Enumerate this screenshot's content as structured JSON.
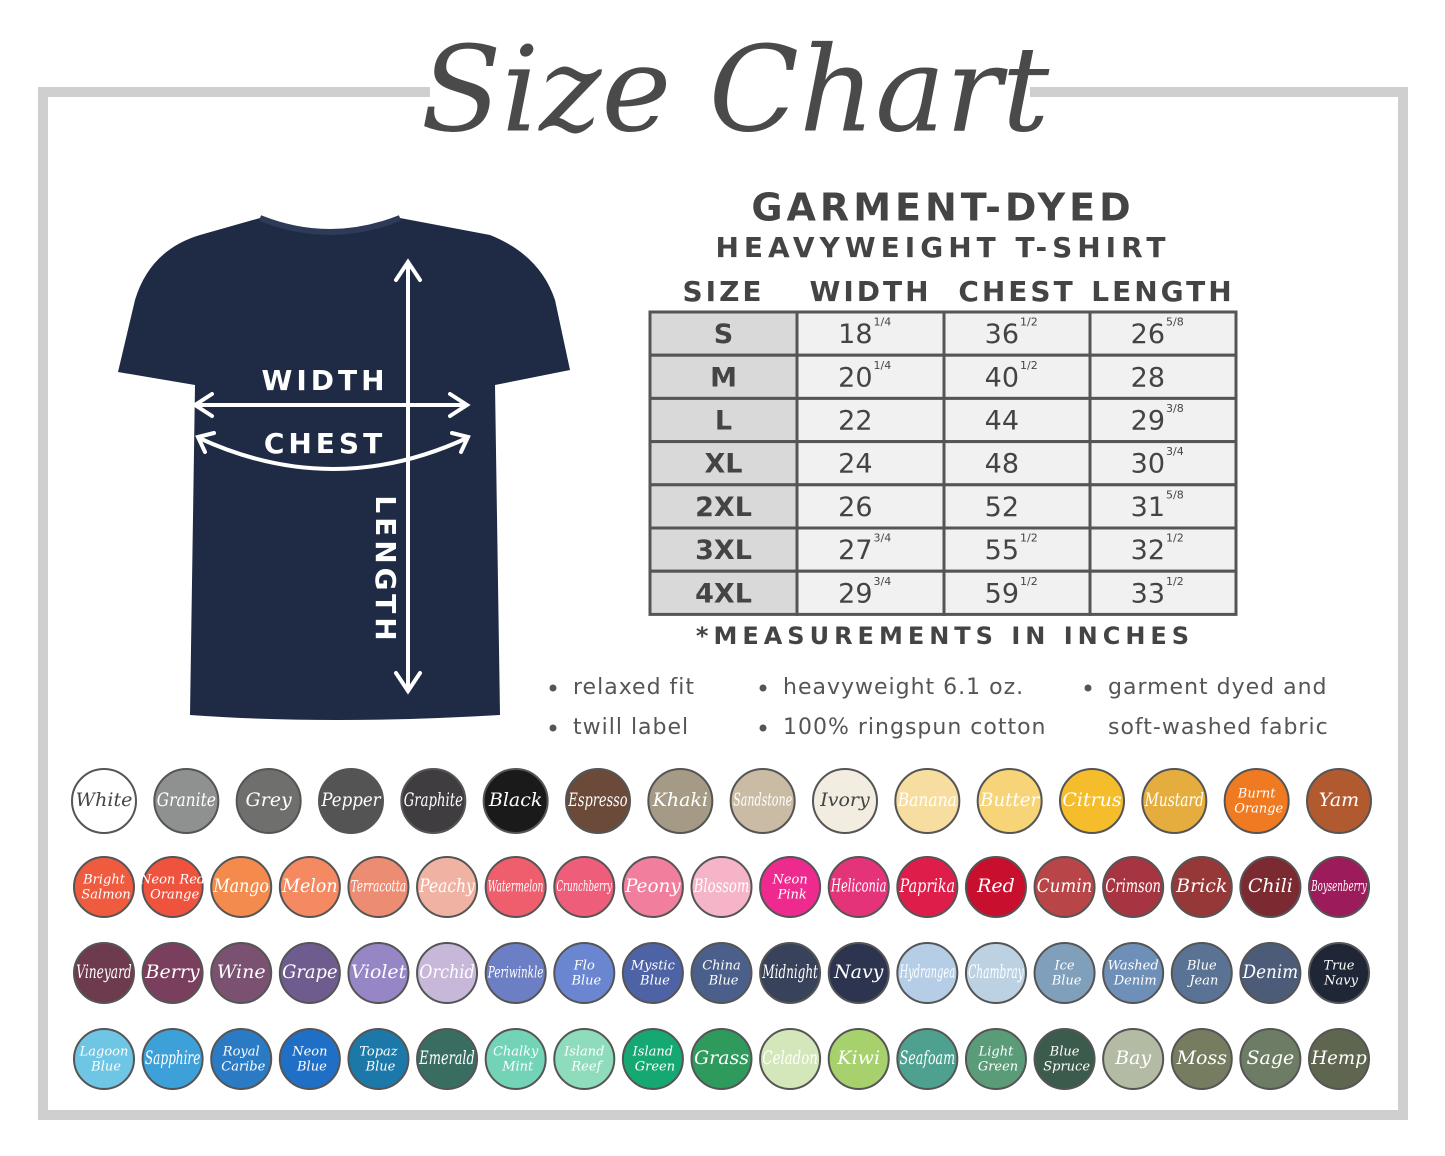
{
  "title": "Size Chart",
  "product": {
    "line1": "GARMENT-DYED",
    "line2": "HEAVYWEIGHT T-SHIRT"
  },
  "diagram": {
    "width": "WIDTH",
    "chest": "CHEST",
    "length": "LENGTH"
  },
  "table": {
    "header": [
      "SIZE",
      "WIDTH",
      "CHEST",
      "LENGTH"
    ],
    "rows": [
      [
        "S",
        [
          "18",
          "1/4"
        ],
        [
          "36",
          "1/2"
        ],
        [
          "26",
          "5/8"
        ]
      ],
      [
        "M",
        [
          "20",
          "1/4"
        ],
        [
          "40",
          "1/2"
        ],
        [
          "28"
        ]
      ],
      [
        "L",
        [
          "22"
        ],
        [
          "44"
        ],
        [
          "29",
          "3/8"
        ]
      ],
      [
        "XL",
        [
          "24"
        ],
        [
          "48"
        ],
        [
          "30",
          "3/4"
        ]
      ],
      [
        "2XL",
        [
          "26"
        ],
        [
          "52"
        ],
        [
          "31",
          "5/8"
        ]
      ],
      [
        "3XL",
        [
          "27",
          "3/4"
        ],
        [
          "55",
          "1/2"
        ],
        [
          "32",
          "1/2"
        ]
      ],
      [
        "4XL",
        [
          "29",
          "3/4"
        ],
        [
          "59",
          "1/2"
        ],
        [
          "33",
          "1/2"
        ]
      ]
    ]
  },
  "note": "*MEASUREMENTS IN INCHES",
  "features": [
    [
      {
        "lines": [
          "relaxed fit"
        ]
      },
      {
        "lines": [
          "twill label"
        ]
      }
    ],
    [
      {
        "lines": [
          "heavyweight 6.1 oz."
        ]
      },
      {
        "lines": [
          "100% ringspun cotton"
        ]
      }
    ],
    [
      {
        "lines": [
          "garment dyed and",
          "soft-washed fabric"
        ]
      }
    ]
  ],
  "swatches": [
    [
      {
        "name": "White",
        "color": "#ffffff"
      },
      {
        "name": "Granite",
        "color": "#8f9191"
      },
      {
        "name": "Grey",
        "color": "#6f6f6e"
      },
      {
        "name": "Pepper",
        "color": "#545454"
      },
      {
        "name": "Graphite",
        "color": "#3f3d3f"
      },
      {
        "name": "Black",
        "color": "#1a1a1a"
      },
      {
        "name": "Espresso",
        "color": "#6b4a3a"
      },
      {
        "name": "Khaki",
        "color": "#a59a86"
      },
      {
        "name": "Sandstone",
        "color": "#c9bba4"
      },
      {
        "name": "Ivory",
        "color": "#f2ede0"
      },
      {
        "name": "Banana",
        "color": "#f7dea0"
      },
      {
        "name": "Butter",
        "color": "#f6d477"
      },
      {
        "name": "Citrus",
        "color": "#f5bd2c"
      },
      {
        "name": "Mustard",
        "color": "#e5ad3d"
      },
      {
        "name": "Burnt Orange",
        "color": "#ef7a22"
      },
      {
        "name": "Yam",
        "color": "#b25a2f"
      }
    ],
    [
      {
        "name": "Bright Salmon",
        "color": "#ee5b3f"
      },
      {
        "name": "Neon Red Orange",
        "color": "#f0533d"
      },
      {
        "name": "Mango",
        "color": "#f48b4c"
      },
      {
        "name": "Melon",
        "color": "#f58a62"
      },
      {
        "name": "Terracotta",
        "color": "#ec8c72"
      },
      {
        "name": "Peachy",
        "color": "#f0b3a3"
      },
      {
        "name": "Watermelon",
        "color": "#ef5e6c"
      },
      {
        "name": "Crunchberry",
        "color": "#ee5e7a"
      },
      {
        "name": "Peony",
        "color": "#f07e9c"
      },
      {
        "name": "Blossom",
        "color": "#f6b4c8"
      },
      {
        "name": "Neon Pink",
        "color": "#ee2a8e"
      },
      {
        "name": "Heliconia",
        "color": "#e5337a"
      },
      {
        "name": "Paprika",
        "color": "#de1d4a"
      },
      {
        "name": "Red",
        "color": "#c8102e"
      },
      {
        "name": "Cumin",
        "color": "#b84547"
      },
      {
        "name": "Crimson",
        "color": "#a63541"
      },
      {
        "name": "Brick",
        "color": "#963838"
      },
      {
        "name": "Chili",
        "color": "#7c2a31"
      },
      {
        "name": "Boysenberry",
        "color": "#9c1b5a"
      }
    ],
    [
      {
        "name": "Vineyard",
        "color": "#6e3a4e"
      },
      {
        "name": "Berry",
        "color": "#7b3f5e"
      },
      {
        "name": "Wine",
        "color": "#7a5170"
      },
      {
        "name": "Grape",
        "color": "#6f5c8e"
      },
      {
        "name": "Violet",
        "color": "#9686c6"
      },
      {
        "name": "Orchid",
        "color": "#c7b8da"
      },
      {
        "name": "Periwinkle",
        "color": "#6d7fc4"
      },
      {
        "name": "Flo Blue",
        "color": "#6a86d0"
      },
      {
        "name": "Mystic Blue",
        "color": "#4e63a6"
      },
      {
        "name": "China Blue",
        "color": "#4a5f8a"
      },
      {
        "name": "Midnight",
        "color": "#38425a"
      },
      {
        "name": "Navy",
        "color": "#2c3450"
      },
      {
        "name": "Hydrangea",
        "color": "#b5cde6"
      },
      {
        "name": "Chambray",
        "color": "#bcd2e2"
      },
      {
        "name": "Ice Blue",
        "color": "#7f9fbb"
      },
      {
        "name": "Washed Denim",
        "color": "#6e8fb8"
      },
      {
        "name": "Blue Jean",
        "color": "#5a7394"
      },
      {
        "name": "Denim",
        "color": "#4c5c78"
      },
      {
        "name": "True Navy",
        "color": "#1f2636"
      }
    ],
    [
      {
        "name": "Lagoon Blue",
        "color": "#6ec5e4"
      },
      {
        "name": "Sapphire",
        "color": "#3da0d8"
      },
      {
        "name": "Royal Caribe",
        "color": "#2a7bc4"
      },
      {
        "name": "Neon Blue",
        "color": "#1f6fc7"
      },
      {
        "name": "Topaz Blue",
        "color": "#1b78a8"
      },
      {
        "name": "Emerald",
        "color": "#3a6d62"
      },
      {
        "name": "Chalky Mint",
        "color": "#72d3b7"
      },
      {
        "name": "Island Reef",
        "color": "#8fdcbc"
      },
      {
        "name": "Island Green",
        "color": "#16a872"
      },
      {
        "name": "Grass",
        "color": "#2e9a5c"
      },
      {
        "name": "Celadon",
        "color": "#d4e7bb"
      },
      {
        "name": "Kiwi",
        "color": "#a6d16c"
      },
      {
        "name": "Seafoam",
        "color": "#4ea18e"
      },
      {
        "name": "Light Green",
        "color": "#5a9b78"
      },
      {
        "name": "Blue Spruce",
        "color": "#3b5b4c"
      },
      {
        "name": "Bay",
        "color": "#b3bba4"
      },
      {
        "name": "Moss",
        "color": "#767c60"
      },
      {
        "name": "Sage",
        "color": "#6d7c64"
      },
      {
        "name": "Hemp",
        "color": "#5e6650"
      }
    ]
  ]
}
